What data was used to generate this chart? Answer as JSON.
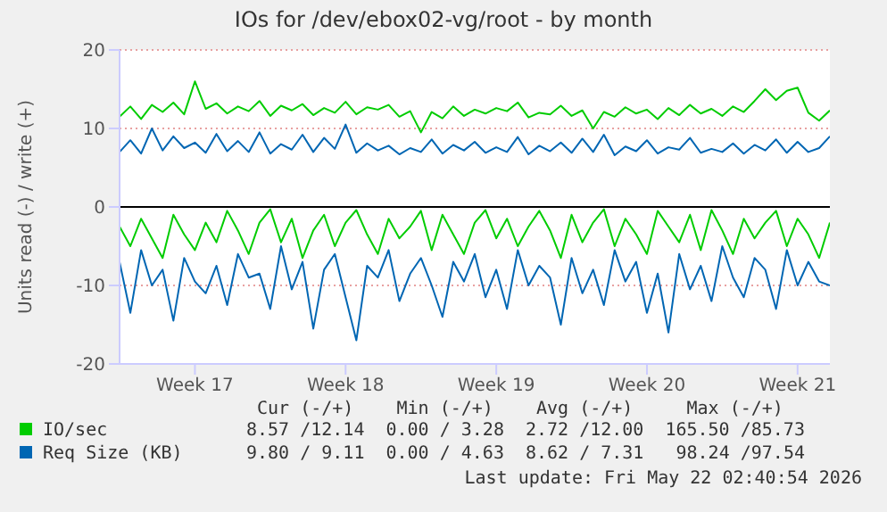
{
  "chart_data": {
    "type": "line",
    "title": "IOs for /dev/ebox02-vg/root - by month",
    "ylabel": "Units read (-) / write (+)",
    "categories": [
      null,
      null,
      null,
      null,
      null,
      null,
      null,
      "Week 17",
      null,
      null,
      null,
      null,
      null,
      null,
      null,
      null,
      null,
      null,
      null,
      null,
      null,
      "Week 18",
      null,
      null,
      null,
      null,
      null,
      null,
      null,
      null,
      null,
      null,
      null,
      null,
      null,
      "Week 19",
      null,
      null,
      null,
      null,
      null,
      null,
      null,
      null,
      null,
      null,
      null,
      null,
      null,
      "Week 20",
      null,
      null,
      null,
      null,
      null,
      null,
      null,
      null,
      null,
      null,
      null,
      null,
      null,
      "Week 21",
      null,
      null,
      null
    ],
    "series": [
      {
        "name": "IO/sec",
        "color": "#00cc00",
        "values": [
          11.5,
          12.8,
          11.2,
          13.0,
          12.1,
          13.3,
          11.8,
          16.0,
          12.5,
          13.2,
          11.9,
          12.8,
          12.2,
          13.5,
          11.6,
          12.9,
          12.3,
          13.1,
          11.7,
          12.6,
          12.0,
          13.4,
          11.8,
          12.7,
          12.4,
          13.0,
          11.5,
          12.2,
          9.5,
          12.1,
          11.3,
          12.8,
          11.6,
          12.4,
          11.9,
          12.6,
          12.2,
          13.3,
          11.4,
          12.0,
          11.8,
          12.9,
          11.6,
          12.3,
          10.0,
          12.1,
          11.5,
          12.7,
          11.9,
          12.4,
          11.2,
          12.6,
          11.7,
          13.0,
          11.9,
          12.5,
          11.6,
          12.8,
          12.1,
          13.5,
          15.0,
          13.6,
          14.8,
          15.2,
          12.0,
          11.0,
          12.3
        ]
      },
      {
        "color": "#00cc00",
        "values": [
          -2.5,
          -5.0,
          -1.5,
          -4.0,
          -6.5,
          -1.0,
          -3.5,
          -5.5,
          -2.0,
          -4.5,
          -0.5,
          -3.0,
          -6.0,
          -2.0,
          -0.3,
          -4.5,
          -1.5,
          -6.5,
          -3.0,
          -1.0,
          -5.0,
          -2.0,
          -0.4,
          -3.5,
          -6.0,
          -1.5,
          -4.0,
          -2.5,
          -0.5,
          -5.5,
          -1.0,
          -3.5,
          -6.0,
          -2.0,
          -0.4,
          -4.0,
          -1.5,
          -5.0,
          -2.5,
          -0.5,
          -3.0,
          -6.5,
          -1.0,
          -4.5,
          -2.0,
          -0.3,
          -5.0,
          -1.5,
          -3.5,
          -6.0,
          -0.5,
          -2.5,
          -4.5,
          -1.0,
          -5.5,
          -0.4,
          -3.0,
          -6.0,
          -1.5,
          -4.0,
          -2.0,
          -0.5,
          -5.0,
          -1.5,
          -3.5,
          -6.5,
          -2.0
        ]
      },
      {
        "name": "Req Size (KB)",
        "color": "#0066b3",
        "values": [
          7.0,
          8.5,
          6.8,
          10.0,
          7.2,
          9.0,
          7.5,
          8.2,
          6.9,
          9.3,
          7.1,
          8.4,
          7.0,
          9.5,
          6.8,
          8.0,
          7.3,
          9.2,
          7.0,
          8.8,
          7.4,
          10.5,
          6.9,
          8.1,
          7.2,
          7.8,
          6.7,
          7.5,
          7.0,
          8.6,
          6.8,
          7.9,
          7.2,
          8.3,
          6.9,
          7.6,
          7.0,
          8.9,
          6.7,
          7.8,
          7.1,
          8.2,
          6.9,
          8.7,
          7.0,
          9.2,
          6.6,
          7.7,
          7.1,
          8.5,
          6.8,
          7.6,
          7.3,
          8.8,
          6.9,
          7.4,
          7.0,
          8.1,
          6.8,
          7.9,
          7.2,
          8.6,
          6.9,
          8.3,
          7.0,
          7.5,
          9.0
        ]
      },
      {
        "color": "#0066b3",
        "values": [
          -7.0,
          -13.5,
          -5.5,
          -10.0,
          -8.0,
          -14.5,
          -6.5,
          -9.5,
          -11.0,
          -7.5,
          -12.5,
          -6.0,
          -9.0,
          -8.5,
          -13.0,
          -5.0,
          -10.5,
          -7.0,
          -15.5,
          -8.0,
          -6.0,
          -11.5,
          -17.0,
          -7.5,
          -9.0,
          -5.5,
          -12.0,
          -8.5,
          -6.5,
          -10.0,
          -14.0,
          -7.0,
          -9.5,
          -6.0,
          -11.5,
          -8.0,
          -13.0,
          -5.5,
          -10.0,
          -7.5,
          -9.0,
          -15.0,
          -6.5,
          -11.0,
          -8.0,
          -12.5,
          -5.5,
          -9.5,
          -7.0,
          -13.5,
          -8.5,
          -16.0,
          -6.0,
          -10.5,
          -7.5,
          -12.0,
          -5.0,
          -9.0,
          -11.5,
          -6.5,
          -8.0,
          -13.0,
          -5.5,
          -10.0,
          -7.0,
          -9.5,
          -10.0
        ]
      }
    ],
    "ylim": [
      -20,
      20
    ],
    "yticks": [
      -20,
      -10,
      0,
      10,
      20
    ],
    "ref_lines": [
      {
        "axis": "y",
        "value": 0,
        "color": "#000000"
      }
    ],
    "grid": "y",
    "legend": "bottom",
    "marker": "none",
    "line_style": "solid",
    "annotations": [
      "Cur (-/+)",
      "Min (-/+)",
      "Avg (-/+)",
      "Max (-/+)",
      "8.57 /12.14",
      "0.00 / 3.28",
      "2.72 /12.00",
      "165.50 /85.73",
      "9.80 / 9.11",
      "0.00 / 4.63",
      "8.62 / 7.31",
      "98.24 /97.54",
      "Last update: Fri May 22 02:40:54 2026"
    ]
  }
}
